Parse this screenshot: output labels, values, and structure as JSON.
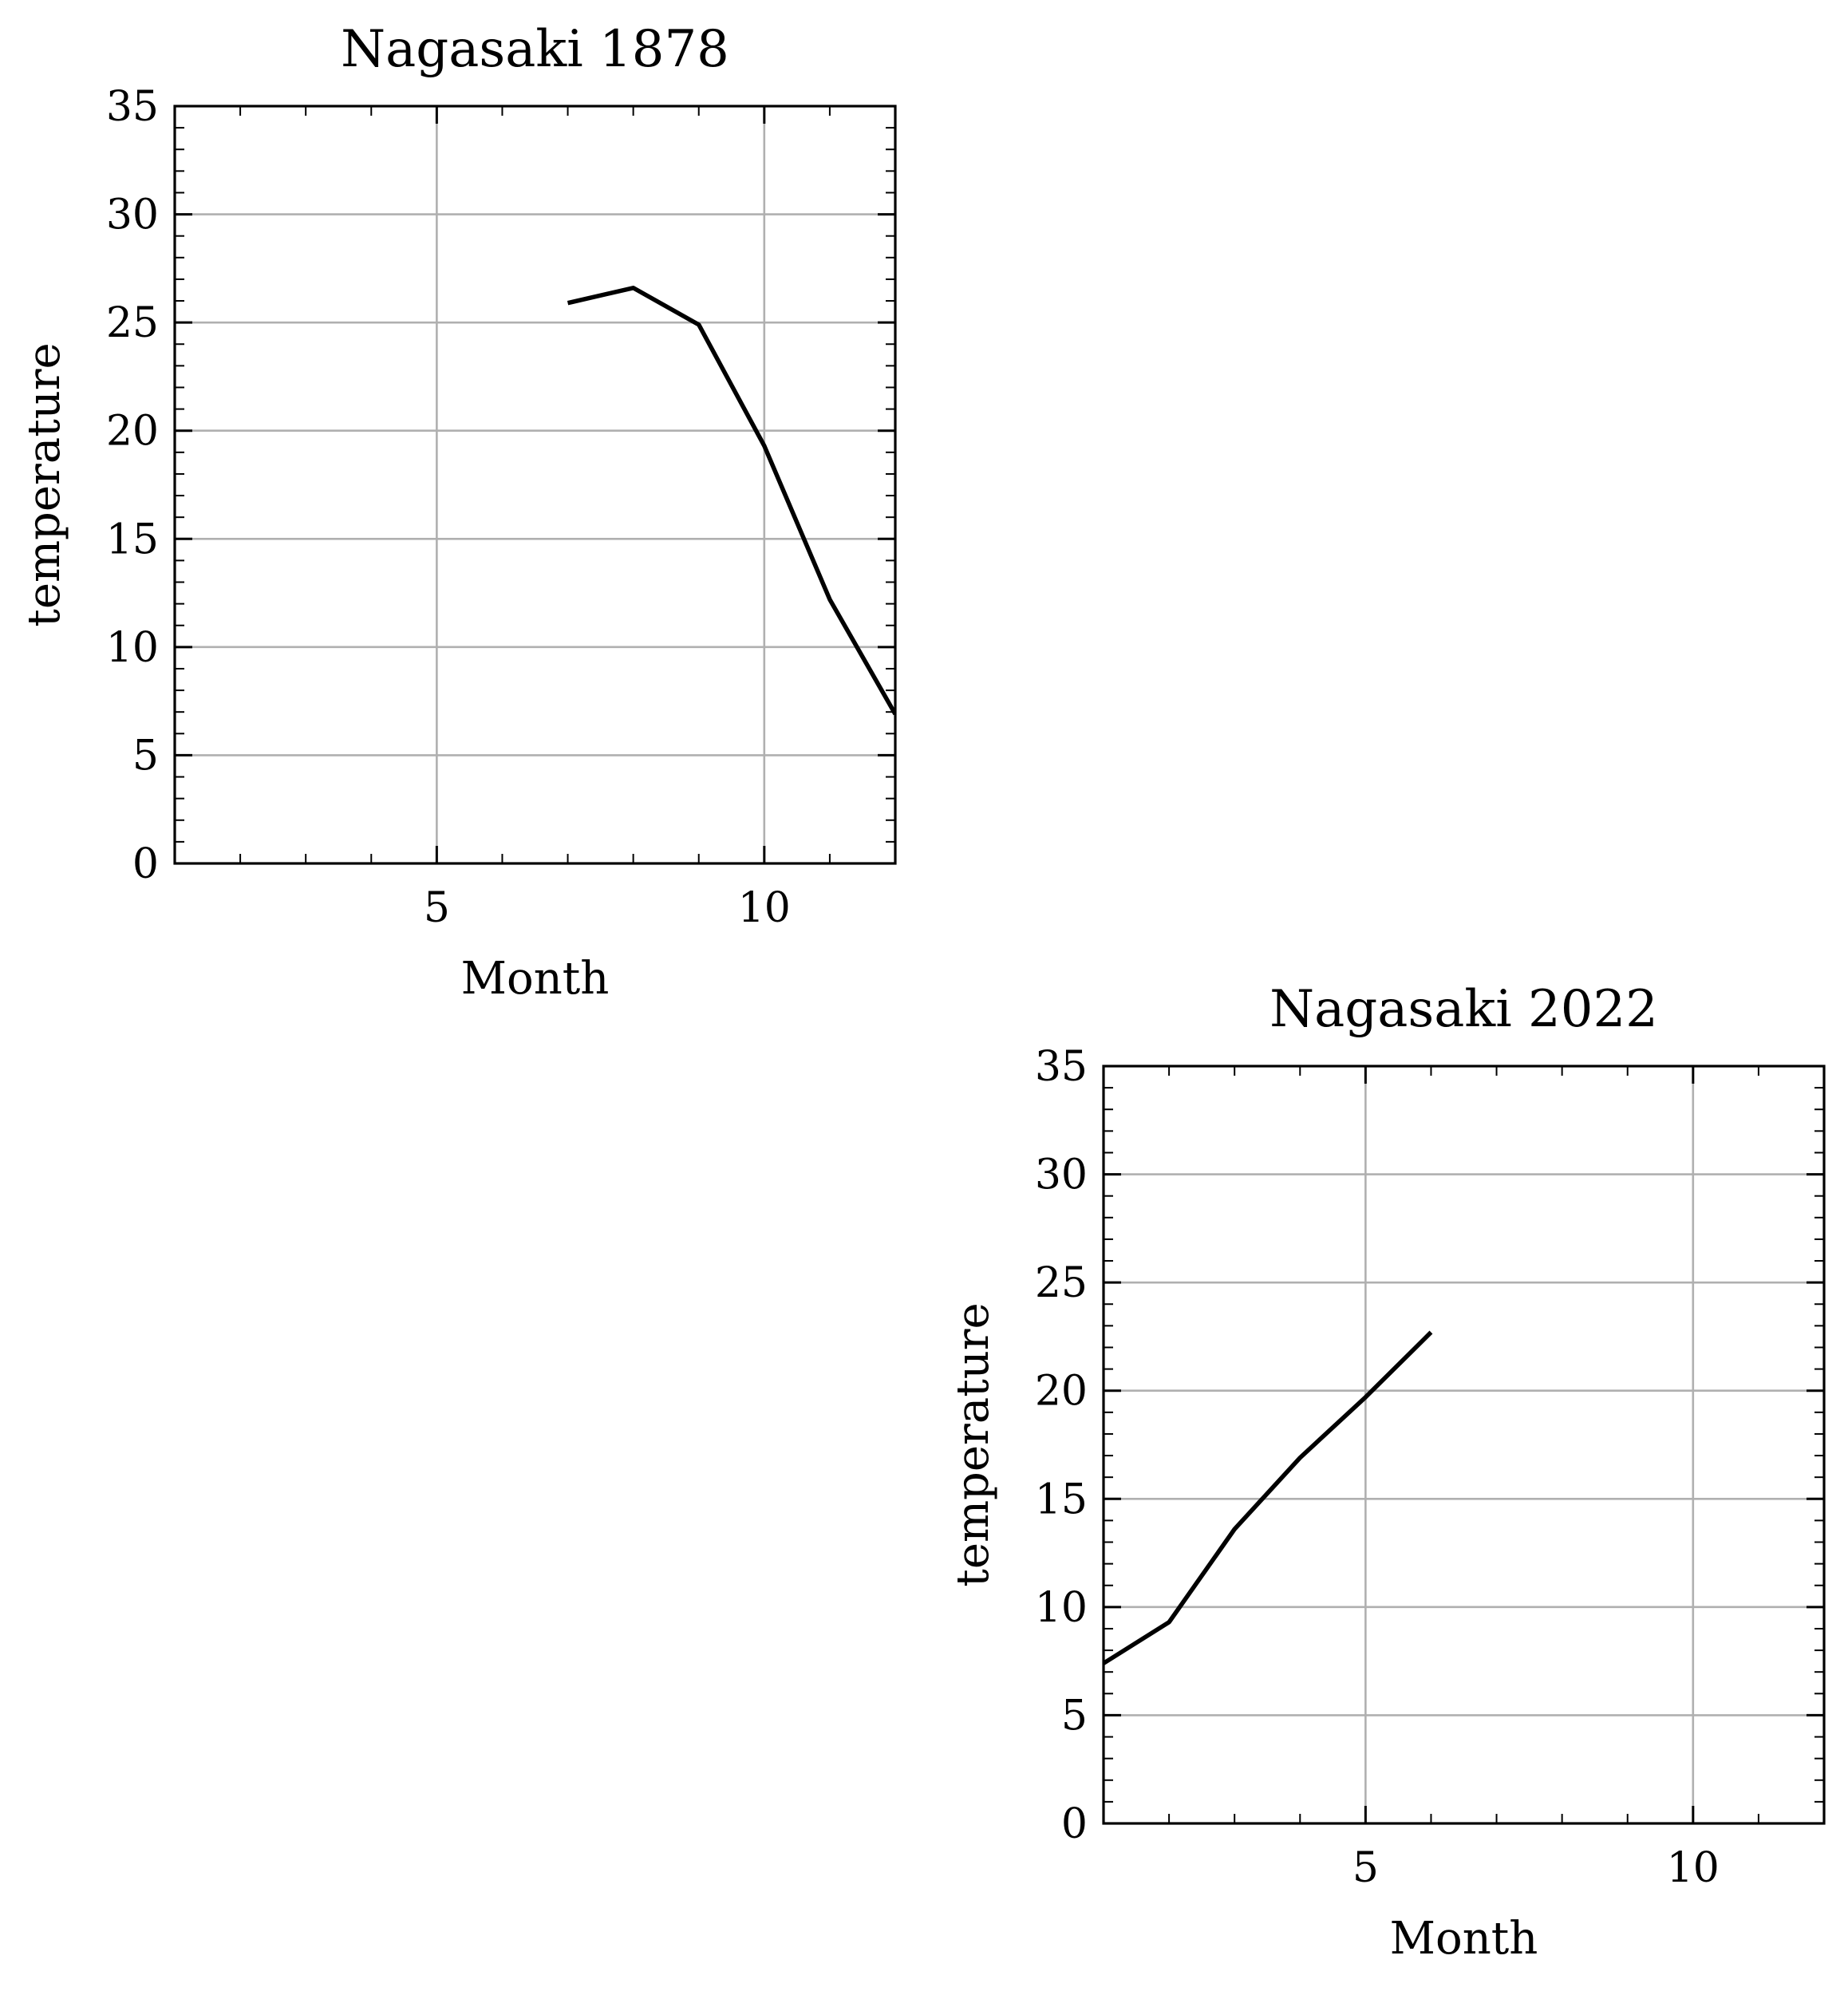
{
  "colors": {
    "line": "#000000",
    "grid": "#b0b0b0",
    "frame": "#000000",
    "background": "#ffffff"
  },
  "chart_data": [
    {
      "type": "line",
      "title": "Nagasaki 1878",
      "xlabel": "Month",
      "ylabel": "temperature",
      "xlim": [
        1,
        12
      ],
      "ylim": [
        0,
        35
      ],
      "xticks": [
        5,
        10
      ],
      "yticks": [
        0,
        5,
        10,
        15,
        20,
        25,
        30,
        35
      ],
      "grid": true,
      "series": [
        {
          "x": [
            7,
            8,
            9,
            10,
            11,
            12
          ],
          "values": [
            25.9,
            26.6,
            24.9,
            19.3,
            12.2,
            6.9
          ]
        }
      ]
    },
    {
      "type": "line",
      "title": "Nagasaki 2022",
      "xlabel": "Month",
      "ylabel": "temperature",
      "xlim": [
        1,
        12
      ],
      "ylim": [
        0,
        35
      ],
      "xticks": [
        5,
        10
      ],
      "yticks": [
        0,
        5,
        10,
        15,
        20,
        25,
        30,
        35
      ],
      "grid": true,
      "series": [
        {
          "x": [
            1,
            2,
            3,
            4,
            5,
            6
          ],
          "values": [
            7.4,
            9.3,
            13.6,
            16.9,
            19.7,
            22.7
          ]
        }
      ]
    }
  ]
}
